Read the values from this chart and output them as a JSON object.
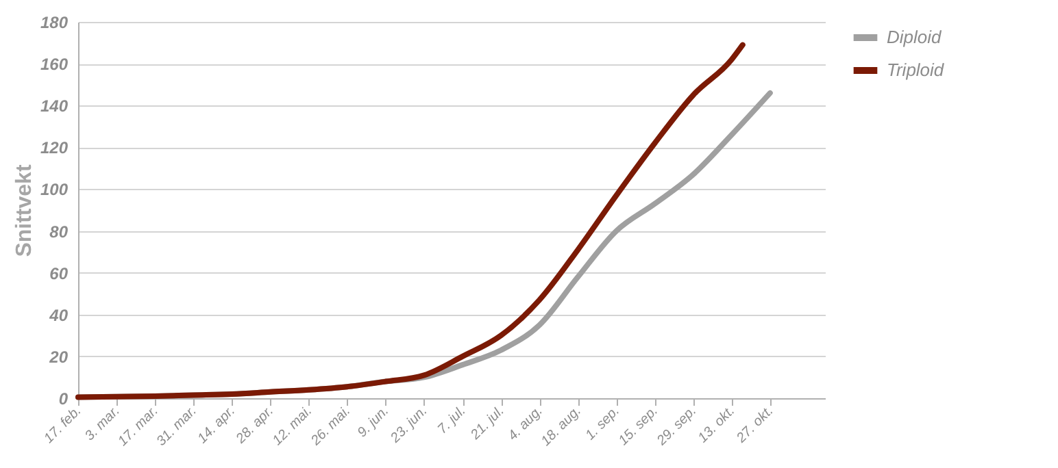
{
  "chart_data": {
    "type": "line",
    "ylabel": "Snittvekt",
    "ylim": [
      0,
      180
    ],
    "yticks": [
      0,
      20,
      40,
      60,
      80,
      100,
      120,
      140,
      160,
      180
    ],
    "xlim": [
      "--02-17",
      "--11-16"
    ],
    "xticks": [
      {
        "value": "--02-17",
        "label": "17. feb."
      },
      {
        "value": "--03-03",
        "label": "3. mar."
      },
      {
        "value": "--03-17",
        "label": "17. mar."
      },
      {
        "value": "--03-31",
        "label": "31. mar."
      },
      {
        "value": "--04-14",
        "label": "14. apr."
      },
      {
        "value": "--04-28",
        "label": "28. apr."
      },
      {
        "value": "--05-12",
        "label": "12. mai."
      },
      {
        "value": "--05-26",
        "label": "26. mai."
      },
      {
        "value": "--06-09",
        "label": "9. jun."
      },
      {
        "value": "--06-23",
        "label": "23. jun."
      },
      {
        "value": "--07-07",
        "label": "7. jul."
      },
      {
        "value": "--07-21",
        "label": "21. jul."
      },
      {
        "value": "--08-04",
        "label": "4. aug."
      },
      {
        "value": "--08-18",
        "label": "18. aug."
      },
      {
        "value": "--09-01",
        "label": "1. sep."
      },
      {
        "value": "--09-15",
        "label": "15. sep."
      },
      {
        "value": "--09-29",
        "label": "29. sep."
      },
      {
        "value": "--10-13",
        "label": "13. okt."
      },
      {
        "value": "--10-27",
        "label": "27. okt."
      }
    ],
    "series": [
      {
        "name": "Diploid",
        "color": "#a0a0a0",
        "x": [
          "--02-17",
          "--03-03",
          "--03-17",
          "--03-31",
          "--04-14",
          "--04-28",
          "--05-12",
          "--05-26",
          "--06-09",
          "--06-23",
          "--07-07",
          "--07-21",
          "--08-04",
          "--08-18",
          "--09-01",
          "--09-15",
          "--09-29",
          "--10-13",
          "--10-27"
        ],
        "values": [
          0.5,
          0.7,
          1,
          1.5,
          2,
          3,
          4,
          5.5,
          8,
          10,
          16,
          23,
          35,
          58,
          80,
          93,
          107,
          126,
          146
        ]
      },
      {
        "name": "Triploid",
        "color": "#7b1a05",
        "x": [
          "--02-17",
          "--03-03",
          "--03-17",
          "--03-31",
          "--04-14",
          "--04-28",
          "--05-12",
          "--05-26",
          "--06-09",
          "--06-23",
          "--07-07",
          "--07-21",
          "--08-04",
          "--08-18",
          "--09-01",
          "--09-15",
          "--09-29",
          "--10-13",
          "--10-17"
        ],
        "values": [
          0.5,
          0.7,
          1,
          1.5,
          2,
          3,
          4,
          5.5,
          8,
          11,
          20,
          30,
          47,
          71,
          97,
          122,
          145,
          162,
          169
        ]
      }
    ],
    "legend": "right",
    "grid": "y",
    "marker": "none",
    "line_style": "solid"
  }
}
